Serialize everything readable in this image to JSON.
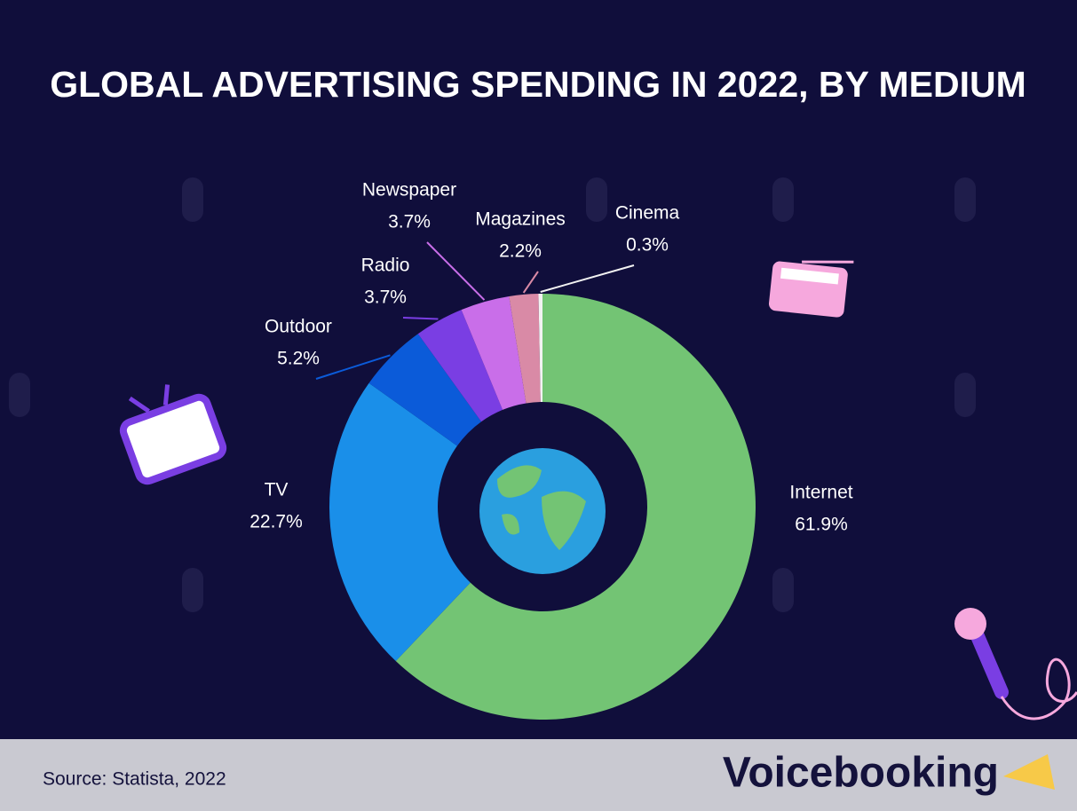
{
  "chart_data": {
    "type": "pie",
    "title": "GLOBAL ADVERTISING SPENDING IN 2022, BY MEDIUM",
    "categories": [
      "Internet",
      "TV",
      "Outdoor",
      "Radio",
      "Newspaper",
      "Magazines",
      "Cinema"
    ],
    "values": [
      61.9,
      22.7,
      5.2,
      3.7,
      3.7,
      2.2,
      0.3
    ],
    "value_labels": [
      "61.9%",
      "22.7%",
      "5.2%",
      "3.7%",
      "3.7%",
      "2.2%",
      "0.3%"
    ],
    "colors": [
      "#73c474",
      "#1a8fe9",
      "#0b5bd9",
      "#7a3ee3",
      "#c96ee9",
      "#d98aa6",
      "#f2f2f2"
    ]
  },
  "footer": {
    "source": "Source: Statista, 2022",
    "brand": "Voicebooking"
  }
}
